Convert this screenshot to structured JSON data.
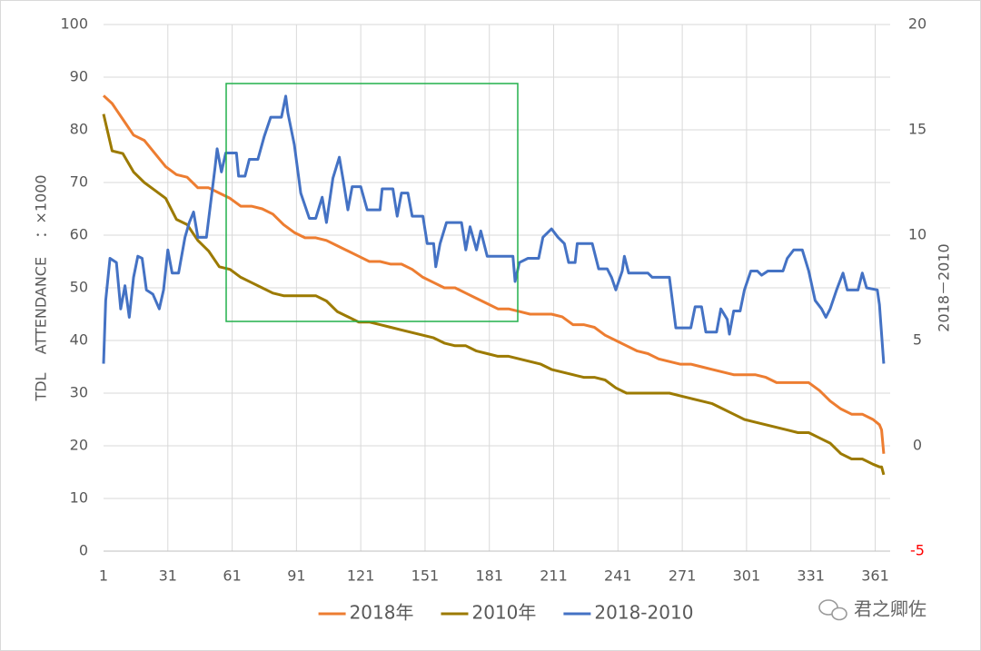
{
  "chart_data": {
    "type": "line",
    "y_label": "TDL    ATTENDANCE    ：×1000",
    "y2_label": "2018－2010",
    "watermark": "君之卿佐",
    "xlim": [
      1,
      368
    ],
    "xticks": [
      1,
      31,
      61,
      91,
      121,
      151,
      181,
      211,
      241,
      271,
      301,
      331,
      361
    ],
    "ylim": [
      0,
      100
    ],
    "yticks": [
      0,
      10,
      20,
      30,
      40,
      50,
      60,
      70,
      80,
      90,
      100
    ],
    "y2lim": [
      -5,
      20
    ],
    "y2ticks": [
      -5,
      0,
      5,
      10,
      15,
      20
    ],
    "negative_y2tick_color": "#ff0000",
    "grid": true,
    "legend": "bottom",
    "series": [
      {
        "name": "2018年",
        "color": "#ed7d31",
        "x": [
          1,
          5,
          10,
          15,
          20,
          25,
          30,
          35,
          40,
          45,
          50,
          55,
          60,
          65,
          70,
          75,
          80,
          85,
          90,
          95,
          100,
          105,
          110,
          115,
          120,
          125,
          130,
          135,
          140,
          145,
          150,
          155,
          160,
          165,
          170,
          175,
          180,
          185,
          190,
          195,
          200,
          205,
          210,
          215,
          220,
          225,
          230,
          235,
          240,
          245,
          250,
          255,
          260,
          265,
          270,
          275,
          280,
          285,
          290,
          295,
          300,
          305,
          310,
          315,
          320,
          325,
          330,
          335,
          340,
          345,
          350,
          355,
          360,
          363,
          364,
          365
        ],
        "values": [
          86.5,
          85,
          82,
          79,
          78,
          75.5,
          73,
          71.5,
          71,
          69,
          69,
          68,
          67,
          65.5,
          65.5,
          65,
          64,
          62,
          60.5,
          59.5,
          59.5,
          59,
          58,
          57,
          56,
          55,
          55,
          54.5,
          54.5,
          53.5,
          52,
          51,
          50,
          50,
          49,
          48,
          47,
          46,
          46,
          45.5,
          45,
          45,
          45,
          44.5,
          43,
          43,
          42.5,
          41,
          40,
          39,
          38,
          37.5,
          36.5,
          36,
          35.5,
          35.5,
          35,
          34.5,
          34,
          33.5,
          33.5,
          33.5,
          33,
          32,
          32,
          32,
          32,
          30.5,
          28.5,
          27,
          26,
          26,
          25,
          24,
          23,
          18.5
        ]
      },
      {
        "name": "2010年",
        "color": "#9c7a00",
        "x": [
          1,
          5,
          10,
          15,
          20,
          25,
          30,
          35,
          40,
          45,
          50,
          55,
          60,
          65,
          70,
          75,
          80,
          85,
          90,
          95,
          100,
          105,
          110,
          115,
          120,
          125,
          130,
          135,
          140,
          145,
          150,
          155,
          160,
          165,
          170,
          175,
          180,
          185,
          190,
          195,
          200,
          205,
          210,
          215,
          220,
          225,
          230,
          235,
          240,
          245,
          250,
          255,
          260,
          265,
          270,
          275,
          280,
          285,
          290,
          295,
          300,
          305,
          310,
          315,
          320,
          325,
          330,
          335,
          340,
          345,
          350,
          355,
          360,
          363,
          364,
          365
        ],
        "values": [
          83,
          76,
          75.5,
          72,
          70,
          68.5,
          67,
          63,
          62,
          59,
          57,
          54,
          53.5,
          52,
          51,
          50,
          49,
          48.5,
          48.5,
          48.5,
          48.5,
          47.5,
          45.5,
          44.5,
          43.5,
          43.5,
          43,
          42.5,
          42,
          41.5,
          41,
          40.5,
          39.5,
          39,
          39,
          38,
          37.5,
          37,
          37,
          36.5,
          36,
          35.5,
          34.5,
          34,
          33.5,
          33,
          33,
          32.5,
          31,
          30,
          30,
          30,
          30,
          30,
          29.5,
          29,
          28.5,
          28,
          27,
          26,
          25,
          24.5,
          24,
          23.5,
          23,
          22.5,
          22.5,
          21.5,
          20.5,
          18.5,
          17.5,
          17.5,
          16.5,
          16,
          16,
          14.5
        ]
      },
      {
        "name": "2018-2010",
        "color": "#4472c4",
        "axis": "y2",
        "x": [
          1,
          2,
          4,
          7,
          9,
          11,
          13,
          15,
          17,
          19,
          21,
          24,
          27,
          29,
          31,
          33,
          36,
          39,
          41,
          43,
          45,
          49,
          53,
          54,
          56,
          58,
          63,
          64,
          67,
          69,
          73,
          76,
          79,
          84,
          86,
          87,
          90,
          93,
          97,
          100,
          103,
          105,
          108,
          111,
          113,
          115,
          117,
          121,
          124,
          130,
          131,
          136,
          138,
          140,
          143,
          145,
          150,
          152,
          155,
          156,
          158,
          161,
          168,
          170,
          172,
          175,
          177,
          180,
          192,
          193,
          195,
          199,
          204,
          206,
          210,
          213,
          216,
          218,
          221,
          222,
          229,
          232,
          236,
          238,
          240,
          243,
          244,
          246,
          255,
          257,
          265,
          268,
          275,
          277,
          280,
          282,
          287,
          289,
          292,
          293,
          295,
          298,
          300,
          303,
          306,
          308,
          311,
          318,
          320,
          323,
          327,
          330,
          333,
          336,
          338,
          340,
          343,
          346,
          348,
          353,
          355,
          357,
          362,
          363,
          365
        ],
        "values": [
          3.9,
          6.9,
          8.9,
          8.7,
          6.5,
          7.6,
          6.1,
          8.0,
          9.0,
          8.9,
          7.4,
          7.2,
          6.5,
          7.4,
          9.3,
          8.2,
          8.2,
          9.9,
          10.6,
          11.1,
          9.9,
          9.9,
          13.2,
          14.1,
          13.0,
          13.9,
          13.9,
          12.8,
          12.8,
          13.6,
          13.6,
          14.7,
          15.6,
          15.6,
          16.6,
          15.8,
          14.3,
          12.0,
          10.8,
          10.8,
          11.8,
          10.6,
          12.7,
          13.7,
          12.5,
          11.2,
          12.3,
          12.3,
          11.2,
          11.2,
          12.2,
          12.2,
          10.9,
          12.0,
          12.0,
          10.9,
          10.9,
          9.6,
          9.6,
          8.5,
          9.6,
          10.6,
          10.6,
          9.3,
          10.4,
          9.3,
          10.2,
          9.0,
          9.0,
          7.8,
          8.7,
          8.9,
          8.9,
          9.9,
          10.3,
          9.9,
          9.6,
          8.7,
          8.7,
          9.6,
          9.6,
          8.4,
          8.4,
          8.0,
          7.4,
          8.3,
          9.0,
          8.2,
          8.2,
          8.0,
          8.0,
          5.6,
          5.6,
          6.6,
          6.6,
          5.4,
          5.4,
          6.5,
          6.0,
          5.3,
          6.4,
          6.4,
          7.4,
          8.3,
          8.3,
          8.1,
          8.3,
          8.3,
          8.9,
          9.3,
          9.3,
          8.3,
          6.9,
          6.5,
          6.1,
          6.5,
          7.4,
          8.2,
          7.4,
          7.4,
          8.2,
          7.5,
          7.4,
          6.7,
          3.9
        ]
      }
    ]
  }
}
